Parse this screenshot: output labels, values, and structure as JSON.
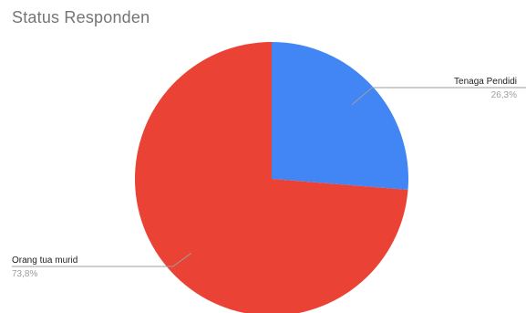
{
  "chart_data": {
    "type": "pie",
    "title": "Status Responden",
    "slices": [
      {
        "label": "Tenaga Pendidik",
        "display_label": "Tenaga Pendidi",
        "value": 26.3,
        "value_label": "26,3%",
        "color": "#4285f4",
        "label_side": "right"
      },
      {
        "label": "Orang tua murid",
        "display_label": "Orang tua murid",
        "value": 73.8,
        "value_label": "73,8%",
        "color": "#ea4335",
        "label_side": "left"
      }
    ],
    "start_angle_deg": 0,
    "direction": "clockwise",
    "legend": "none"
  }
}
